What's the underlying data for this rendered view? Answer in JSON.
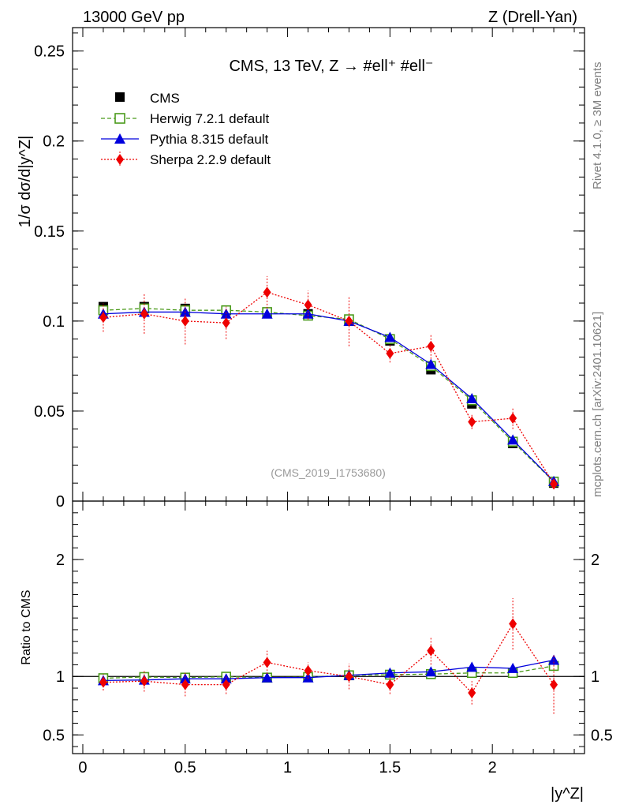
{
  "header": {
    "left": "13000 GeV pp",
    "right": "Z (Drell-Yan)"
  },
  "side_labels": {
    "rivet": "Rivet 4.1.0, ≥ 3M events",
    "mcplots": "mcplots.cern.ch [arXiv:2401.10621]"
  },
  "chart_data": [
    {
      "type": "line",
      "panel": "main",
      "title": "CMS, 13 TeV, Z →  #ell⁺ #ell⁻",
      "annotation": "(CMS_2019_I1753680)",
      "xlabel": "|y^Z|",
      "ylabel": "1/σ dσ/d|y^Z|",
      "xlim": [
        -0.05,
        2.45
      ],
      "ylim": [
        0,
        0.263
      ],
      "yticks": [
        0,
        0.05,
        0.1,
        0.15,
        0.2,
        0.25
      ],
      "ytick_labels": [
        "0",
        "0.05",
        "0.1",
        "0.15",
        "0.2",
        "0.25"
      ],
      "legend_position": "top-left",
      "x": [
        0.1,
        0.3,
        0.5,
        0.7,
        0.9,
        1.1,
        1.3,
        1.5,
        1.7,
        1.9,
        2.1,
        2.3
      ],
      "series": [
        {
          "name": "CMS",
          "color": "#000000",
          "marker": "square",
          "values": [
            0.108,
            0.108,
            0.107,
            0.106,
            0.105,
            0.104,
            0.1,
            0.089,
            0.073,
            0.054,
            0.032,
            0.01
          ]
        },
        {
          "name": "Herwig 7.2.1 default",
          "color": "#4a9a1a",
          "marker": "open-square",
          "values": [
            0.106,
            0.107,
            0.106,
            0.106,
            0.105,
            0.103,
            0.101,
            0.09,
            0.075,
            0.056,
            0.033,
            0.0108
          ]
        },
        {
          "name": "Pythia 8.315 default",
          "color": "#0000dd",
          "marker": "triangle",
          "values": [
            0.104,
            0.105,
            0.105,
            0.104,
            0.104,
            0.104,
            0.1,
            0.091,
            0.076,
            0.057,
            0.034,
            0.011
          ]
        },
        {
          "name": "Sherpa 2.2.9 default",
          "color": "#ee0000",
          "marker": "diamond",
          "values": [
            0.102,
            0.104,
            0.1,
            0.099,
            0.116,
            0.109,
            0.1,
            0.082,
            0.086,
            0.044,
            0.046,
            0.0095
          ],
          "errors": [
            0.008,
            0.011,
            0.013,
            0.009,
            0.009,
            0.008,
            0.014,
            0.005,
            0.007,
            0.004,
            0.006,
            0.003
          ]
        }
      ]
    },
    {
      "type": "line",
      "panel": "ratio",
      "xlabel": "|y^Z|",
      "ylabel": "Ratio to CMS",
      "xlim": [
        -0.05,
        2.45
      ],
      "ylim": [
        0.34,
        2.5
      ],
      "xticks": [
        0,
        0.5,
        1,
        1.5,
        2
      ],
      "xtick_labels": [
        "0",
        "0.5",
        "1",
        "1.5",
        "2"
      ],
      "yticks": [
        0.5,
        1,
        2
      ],
      "ytick_labels": [
        "0.5",
        "1",
        "2"
      ],
      "reference_line": 1,
      "x": [
        0.1,
        0.3,
        0.5,
        0.7,
        0.9,
        1.1,
        1.3,
        1.5,
        1.7,
        1.9,
        2.1,
        2.3
      ],
      "series": [
        {
          "name": "Herwig 7.2.1 default",
          "color": "#4a9a1a",
          "marker": "open-square",
          "values": [
            0.985,
            0.995,
            0.99,
            0.998,
            0.99,
            0.995,
            1.01,
            1.015,
            1.02,
            1.03,
            1.03,
            1.09
          ]
        },
        {
          "name": "Pythia 8.315 default",
          "color": "#0000dd",
          "marker": "triangle",
          "values": [
            0.965,
            0.97,
            0.98,
            0.98,
            0.99,
            0.99,
            1.01,
            1.03,
            1.04,
            1.08,
            1.07,
            1.14
          ]
        },
        {
          "name": "Sherpa 2.2.9 default",
          "color": "#ee0000",
          "marker": "diamond",
          "values": [
            0.95,
            0.96,
            0.93,
            0.93,
            1.12,
            1.05,
            1.0,
            0.93,
            1.22,
            0.86,
            1.45,
            0.93
          ],
          "errors": [
            0.07,
            0.09,
            0.1,
            0.08,
            0.1,
            0.07,
            0.11,
            0.08,
            0.12,
            0.1,
            0.22,
            0.25
          ]
        }
      ]
    }
  ]
}
